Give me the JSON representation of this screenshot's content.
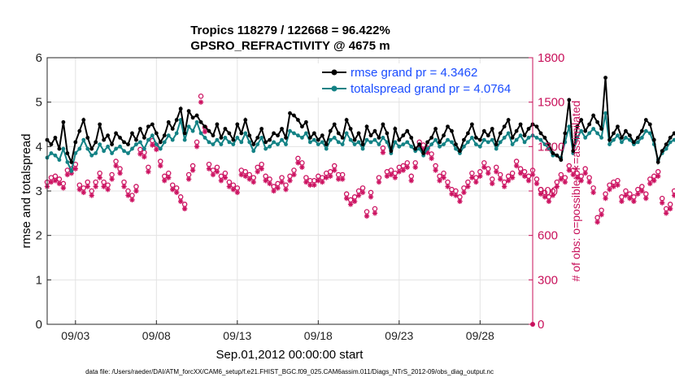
{
  "chart_data": {
    "type": "line",
    "title": "Tropics 118279 / 122668 = 96.422%",
    "subtitle": "GPSRO_REFRACTIVITY @ 4675 m",
    "xlabel": "Sep.01,2012 00:00:00 start",
    "ylabel": "rmse and totalspread",
    "y2label": "# of obs: o=possible; ∗=assimilated",
    "footnote": "data file: /Users/raeder/DAI/ATM_forcXX/CAM6_setup/f.e21.FHIST_BGC.f09_025.CAM6assim.011/Diags_NTrS_2012-09/obs_diag_output.nc",
    "xlim": [
      1.25,
      31.25
    ],
    "ylim": [
      0,
      6
    ],
    "y2lim": [
      0,
      1800
    ],
    "x_ticks": [
      3,
      8,
      13,
      18,
      23,
      28
    ],
    "x_tick_labels": [
      "09/03",
      "09/08",
      "09/13",
      "09/18",
      "09/23",
      "09/28"
    ],
    "y_ticks": [
      0,
      1,
      2,
      3,
      4,
      5,
      6
    ],
    "y2_ticks": [
      0,
      300,
      600,
      900,
      1200,
      1500,
      1800
    ],
    "grid": true,
    "legend_position": "top-right",
    "x_step_days": 0.25,
    "x_start": 1.25,
    "series": [
      {
        "name": "rmse grand pr = 4.3462",
        "axis": "left",
        "color": "#000000",
        "marker": "dot",
        "values": [
          4.15,
          4.05,
          4.2,
          3.95,
          4.55,
          3.85,
          3.65,
          4.1,
          4.35,
          4.6,
          4.2,
          3.95,
          4.1,
          4.5,
          4.15,
          4.25,
          4.05,
          4.3,
          4.2,
          4.1,
          4.05,
          4.3,
          4.15,
          4.4,
          4.2,
          4.45,
          4.5,
          4.3,
          4.1,
          4.25,
          4.55,
          4.4,
          4.6,
          4.85,
          4.3,
          4.8,
          4.65,
          4.7,
          4.55,
          4.45,
          4.35,
          4.25,
          4.5,
          4.2,
          4.4,
          4.3,
          4.15,
          4.5,
          4.3,
          4.6,
          4.25,
          4.05,
          4.2,
          4.4,
          4.1,
          4.15,
          4.3,
          4.25,
          4.4,
          4.2,
          4.75,
          4.7,
          4.6,
          4.45,
          4.55,
          4.2,
          4.3,
          4.15,
          4.25,
          4.05,
          4.35,
          4.5,
          4.3,
          4.2,
          4.6,
          4.4,
          4.15,
          4.3,
          4.05,
          4.45,
          4.25,
          4.35,
          4.2,
          4.5,
          4.3,
          3.9,
          4.4,
          4.15,
          4.25,
          4.35,
          4.2,
          3.95,
          4.05,
          3.85,
          4.1,
          4.2,
          4.4,
          4.1,
          4.25,
          4.45,
          4.35,
          4.05,
          3.9,
          4.15,
          4.3,
          4.5,
          4.2,
          4.15,
          4.35,
          4.25,
          4.4,
          4.05,
          4.3,
          4.45,
          4.6,
          4.2,
          4.35,
          4.5,
          4.25,
          4.4,
          4.5,
          4.45,
          4.3,
          4.2,
          4.05,
          3.85,
          3.8,
          3.7,
          4.3,
          5.05,
          3.9,
          4.45,
          4.6,
          4.35,
          4.5,
          4.7,
          4.55,
          4.4,
          5.55,
          4.15,
          4.3,
          4.45,
          4.2,
          4.35,
          4.25,
          4.1,
          4.2,
          4.35,
          4.6,
          4.5,
          4.15,
          3.65,
          3.9,
          4.05,
          4.2,
          4.3,
          4.15,
          4.35,
          4.5,
          4.3,
          4.55,
          4.4,
          4.35,
          4.4
        ]
      },
      {
        "name": "totalspread grand pr = 4.0764",
        "axis": "left",
        "color": "#138285",
        "marker": "dot",
        "values": [
          3.75,
          3.85,
          3.8,
          3.7,
          3.95,
          3.65,
          3.45,
          3.85,
          3.95,
          4.15,
          3.95,
          3.8,
          3.85,
          4.05,
          3.9,
          4.0,
          3.85,
          3.95,
          4.0,
          3.9,
          3.85,
          3.95,
          4.05,
          4.1,
          3.95,
          4.15,
          4.25,
          4.05,
          3.95,
          4.1,
          4.25,
          4.15,
          4.3,
          4.6,
          4.15,
          4.45,
          4.35,
          4.55,
          4.3,
          4.2,
          4.1,
          4.05,
          4.15,
          4.05,
          4.2,
          4.1,
          4.05,
          4.2,
          4.1,
          4.3,
          4.1,
          3.9,
          4.05,
          4.2,
          3.95,
          4.0,
          4.1,
          4.05,
          4.15,
          4.05,
          4.35,
          4.3,
          4.25,
          4.2,
          4.3,
          4.1,
          4.15,
          4.05,
          4.1,
          3.95,
          4.15,
          4.2,
          4.1,
          4.05,
          4.3,
          4.15,
          4.05,
          4.1,
          3.95,
          4.15,
          4.1,
          4.15,
          4.05,
          4.2,
          4.1,
          3.85,
          4.1,
          4.0,
          4.05,
          4.1,
          4.0,
          3.9,
          3.95,
          3.8,
          3.95,
          4.05,
          4.15,
          4.0,
          4.05,
          4.15,
          4.1,
          3.95,
          3.85,
          4.0,
          4.1,
          4.2,
          4.05,
          4.0,
          4.15,
          4.1,
          4.15,
          3.95,
          4.1,
          4.2,
          4.3,
          4.05,
          4.15,
          4.25,
          4.1,
          4.2,
          4.25,
          4.2,
          4.15,
          4.05,
          3.95,
          3.8,
          3.8,
          3.75,
          4.1,
          4.45,
          3.85,
          4.2,
          4.35,
          4.2,
          4.3,
          4.4,
          4.3,
          4.2,
          4.75,
          4.05,
          4.15,
          4.25,
          4.1,
          4.2,
          4.15,
          4.05,
          4.1,
          4.2,
          4.35,
          4.3,
          4.05,
          3.7,
          3.85,
          3.95,
          4.1,
          4.15,
          4.05,
          4.2,
          4.3,
          4.15,
          4.3,
          4.25,
          4.2,
          4.2
        ]
      },
      {
        "name": "possible obs",
        "axis": "right",
        "color": "#cc1160",
        "marker": "circle",
        "values": [
          960,
          990,
          1000,
          980,
          950,
          1040,
          1050,
          1080,
          940,
          920,
          960,
          900,
          960,
          1020,
          960,
          940,
          1010,
          1100,
          1050,
          960,
          900,
          870,
          930,
          1180,
          1160,
          1060,
          1240,
          1210,
          1100,
          1000,
          1020,
          940,
          920,
          860,
          810,
          1010,
          1070,
          1230,
          1540,
          1330,
          1080,
          1040,
          1060,
          1000,
          1020,
          960,
          940,
          920,
          1040,
          1030,
          1010,
          990,
          1060,
          1080,
          1000,
          980,
          930,
          950,
          990,
          940,
          1000,
          1040,
          1120,
          1090,
          990,
          970,
          970,
          1000,
          990,
          1020,
          1030,
          1070,
          1010,
          1010,
          880,
          840,
          860,
          900,
          920,
          760,
          890,
          780,
          990,
          1190,
          1030,
          1040,
          1020,
          1060,
          1070,
          1090,
          1000,
          1090,
          1230,
          1210,
          1190,
          1150,
          1070,
          1000,
          1020,
          960,
          910,
          900,
          860,
          920,
          960,
          1020,
          990,
          1030,
          1090,
          1050,
          980,
          1060,
          1010,
          960,
          1000,
          1020,
          1100,
          1050,
          1030,
          1000,
          1040,
          980,
          910,
          890,
          860,
          900,
          960,
          1010,
          990,
          1070,
          1040,
          1020,
          1000,
          1050,
          990,
          920,
          720,
          770,
          880,
          940,
          960,
          970,
          860,
          900,
          880,
          860,
          910,
          930,
          880,
          980,
          1000,
          1030,
          850,
          780,
          810,
          900,
          920,
          940,
          930,
          1020,
          850,
          960,
          900,
          740,
          790,
          700,
          1140,
          1100,
          1080
        ]
      },
      {
        "name": "assimilated obs",
        "axis": "right",
        "color": "#cc1160",
        "marker": "star",
        "values": [
          930,
          960,
          970,
          950,
          920,
          1010,
          1020,
          1050,
          910,
          890,
          930,
          870,
          930,
          990,
          930,
          910,
          980,
          1070,
          1020,
          930,
          870,
          840,
          900,
          1150,
          1130,
          1030,
          1210,
          1180,
          1070,
          970,
          990,
          910,
          890,
          830,
          780,
          980,
          1040,
          1200,
          1500,
          1300,
          1050,
          1010,
          1030,
          970,
          990,
          930,
          910,
          890,
          1010,
          1000,
          980,
          960,
          1030,
          1050,
          970,
          950,
          900,
          920,
          960,
          910,
          970,
          1010,
          1090,
          1060,
          960,
          940,
          940,
          970,
          960,
          990,
          1000,
          1040,
          980,
          980,
          850,
          810,
          830,
          870,
          890,
          730,
          860,
          750,
          960,
          1160,
          1000,
          1010,
          990,
          1030,
          1040,
          1060,
          970,
          1060,
          1200,
          1180,
          1160,
          1120,
          1040,
          970,
          990,
          930,
          880,
          870,
          830,
          890,
          930,
          990,
          960,
          1000,
          1060,
          1020,
          950,
          1030,
          980,
          930,
          970,
          990,
          1070,
          1020,
          1000,
          970,
          1010,
          950,
          880,
          860,
          830,
          870,
          930,
          980,
          960,
          1040,
          1010,
          990,
          970,
          1020,
          960,
          890,
          690,
          740,
          850,
          910,
          930,
          940,
          830,
          870,
          850,
          830,
          880,
          900,
          850,
          950,
          970,
          1000,
          820,
          750,
          780,
          870,
          890,
          910,
          900,
          990,
          820,
          930,
          870,
          710,
          760,
          670,
          1110,
          1070,
          1050
        ]
      }
    ]
  }
}
